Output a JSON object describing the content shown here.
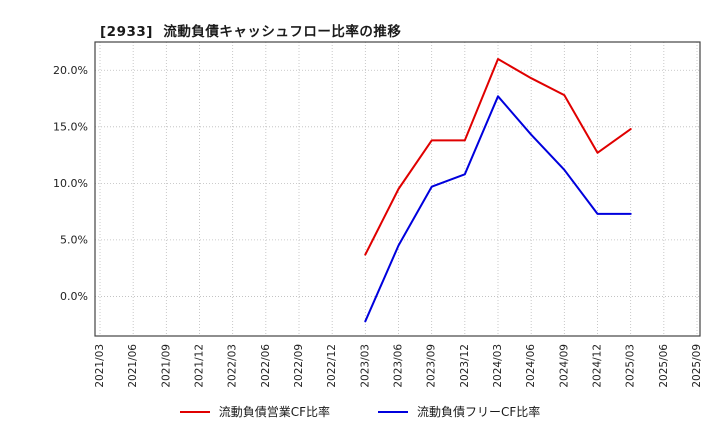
{
  "chart_data": {
    "type": "line",
    "title": "[2933]  流動負債キャッシュフロー比率の推移",
    "x_labels": [
      "2021/03",
      "2021/06",
      "2021/09",
      "2021/12",
      "2022/03",
      "2022/06",
      "2022/09",
      "2022/12",
      "2023/03",
      "2023/06",
      "2023/09",
      "2023/12",
      "2024/03",
      "2024/06",
      "2024/09",
      "2024/12",
      "2025/03",
      "2025/06",
      "2025/09"
    ],
    "series": [
      {
        "name": "流動負債営業CF比率",
        "color": "#e00000",
        "values": [
          null,
          null,
          null,
          null,
          null,
          null,
          null,
          null,
          3.7,
          9.5,
          13.8,
          13.8,
          21.0,
          19.3,
          17.8,
          12.7,
          14.8,
          null,
          null
        ]
      },
      {
        "name": "流動負債フリーCF比率",
        "color": "#0000dd",
        "values": [
          null,
          null,
          null,
          null,
          null,
          null,
          null,
          null,
          -2.2,
          4.5,
          9.7,
          10.8,
          17.7,
          14.3,
          11.2,
          7.3,
          7.3,
          null,
          null
        ]
      }
    ],
    "yticks": [
      0.0,
      5.0,
      10.0,
      15.0,
      20.0
    ],
    "ytick_suffix": "%",
    "ylim": [
      -3.5,
      22.5
    ],
    "grid": "dotted",
    "legend_position": "bottom-center",
    "xlabel": "",
    "ylabel": ""
  }
}
